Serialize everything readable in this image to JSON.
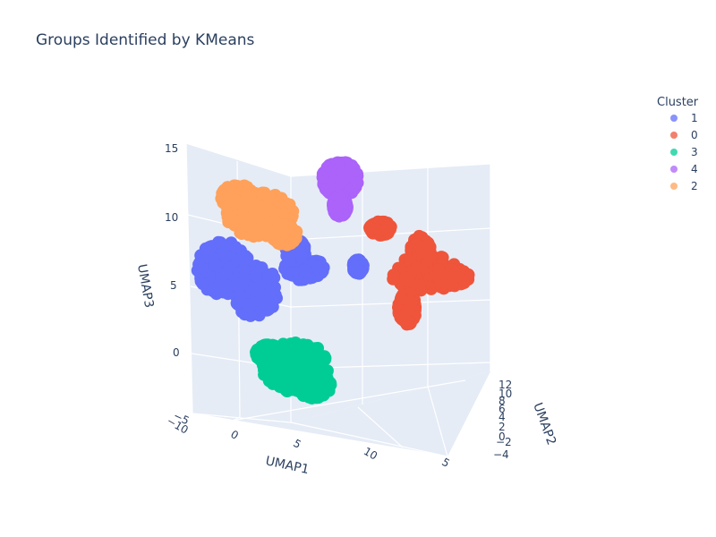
{
  "chart_data": {
    "type": "scatter",
    "title": "Groups Identified by KMeans",
    "xlabel": "UMAP1",
    "ylabel": "UMAP2",
    "zlabel": "UMAP3",
    "x_ticks": [
      "−10",
      "0",
      "5",
      "10",
      "5"
    ],
    "y_ticks": [
      "12",
      "10",
      "8",
      "6",
      "4",
      "2",
      "0",
      "−2",
      "−4"
    ],
    "z_ticks": [
      "15",
      "10",
      "5",
      "0",
      "−5"
    ],
    "legend_title": "Cluster",
    "series": [
      {
        "name": "1",
        "color": "#636efa",
        "points": 700
      },
      {
        "name": "0",
        "color": "#ef553b",
        "points": 700
      },
      {
        "name": "3",
        "color": "#00cc96",
        "points": 700
      },
      {
        "name": "4",
        "color": "#ab63fa",
        "points": 700
      },
      {
        "name": "2",
        "color": "#ffa15a",
        "points": 700
      }
    ],
    "grid": true,
    "legend_position": "top-right",
    "background": "#e5ecf6"
  }
}
